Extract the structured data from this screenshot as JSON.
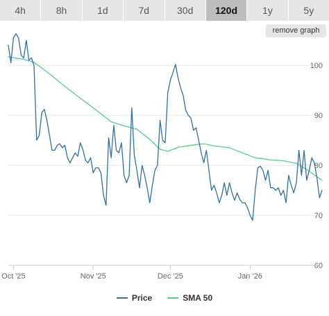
{
  "range_tabs": [
    {
      "label": "4h",
      "active": false
    },
    {
      "label": "8h",
      "active": false
    },
    {
      "label": "1d",
      "active": false
    },
    {
      "label": "7d",
      "active": false
    },
    {
      "label": "30d",
      "active": false
    },
    {
      "label": "120d",
      "active": true
    },
    {
      "label": "1y",
      "active": false
    },
    {
      "label": "5y",
      "active": false
    }
  ],
  "remove_graph_label": "remove graph",
  "colors": {
    "price": "#2a6fa8",
    "sma": "#4cd285"
  },
  "chart_data": {
    "type": "line",
    "x_type": "date",
    "xlim": [
      "2025-09-29",
      "2026-01-29"
    ],
    "ylim": [
      60,
      105
    ],
    "y_ticks": [
      60,
      70,
      80,
      90,
      100
    ],
    "y_axis_side": "right",
    "grid": "horizontal",
    "x_ticks": [
      {
        "date": "2025-10-01",
        "label": "Oct '25"
      },
      {
        "date": "2025-11-01",
        "label": "Nov '25"
      },
      {
        "date": "2025-12-01",
        "label": "Dec '25"
      },
      {
        "date": "2026-01-01",
        "label": "Jan '26"
      }
    ],
    "legend_position": "bottom",
    "series": [
      {
        "name": "Price",
        "color": "#2a6fa8",
        "points": [
          [
            "2025-09-29",
            104.0
          ],
          [
            "2025-09-30",
            100.5
          ],
          [
            "2025-10-01",
            105.5
          ],
          [
            "2025-10-02",
            106.3
          ],
          [
            "2025-10-03",
            105.4
          ],
          [
            "2025-10-04",
            102.0
          ],
          [
            "2025-10-05",
            101.5
          ],
          [
            "2025-10-06",
            105.0
          ],
          [
            "2025-10-07",
            101.0
          ],
          [
            "2025-10-08",
            101.5
          ],
          [
            "2025-10-09",
            100.0
          ],
          [
            "2025-10-10",
            85.0
          ],
          [
            "2025-10-11",
            86.0
          ],
          [
            "2025-10-12",
            90.5
          ],
          [
            "2025-10-13",
            91.2
          ],
          [
            "2025-10-14",
            89.0
          ],
          [
            "2025-10-15",
            86.0
          ],
          [
            "2025-10-16",
            83.0
          ],
          [
            "2025-10-17",
            83.0
          ],
          [
            "2025-10-18",
            84.0
          ],
          [
            "2025-10-19",
            84.3
          ],
          [
            "2025-10-20",
            83.5
          ],
          [
            "2025-10-21",
            84.0
          ],
          [
            "2025-10-22",
            81.5
          ],
          [
            "2025-10-23",
            80.5
          ],
          [
            "2025-10-24",
            81.5
          ],
          [
            "2025-10-25",
            82.5
          ],
          [
            "2025-10-26",
            81.8
          ],
          [
            "2025-10-27",
            84.5
          ],
          [
            "2025-10-28",
            83.2
          ],
          [
            "2025-10-29",
            81.0
          ],
          [
            "2025-10-30",
            80.5
          ],
          [
            "2025-10-31",
            81.5
          ],
          [
            "2025-11-01",
            78.5
          ],
          [
            "2025-11-02",
            79.5
          ],
          [
            "2025-11-03",
            79.5
          ],
          [
            "2025-11-04",
            78.5
          ],
          [
            "2025-11-05",
            74.0
          ],
          [
            "2025-11-06",
            72.0
          ],
          [
            "2025-11-07",
            85.5
          ],
          [
            "2025-11-08",
            81.5
          ],
          [
            "2025-11-09",
            88.0
          ],
          [
            "2025-11-10",
            83.0
          ],
          [
            "2025-11-11",
            82.5
          ],
          [
            "2025-11-12",
            84.5
          ],
          [
            "2025-11-13",
            78.0
          ],
          [
            "2025-11-14",
            76.5
          ],
          [
            "2025-11-15",
            78.0
          ],
          [
            "2025-11-16",
            91.5
          ],
          [
            "2025-11-17",
            82.0
          ],
          [
            "2025-11-18",
            79.0
          ],
          [
            "2025-11-19",
            75.5
          ],
          [
            "2025-11-20",
            80.0
          ],
          [
            "2025-11-21",
            78.0
          ],
          [
            "2025-11-22",
            75.5
          ],
          [
            "2025-11-23",
            72.5
          ],
          [
            "2025-11-24",
            76.0
          ],
          [
            "2025-11-25",
            79.0
          ],
          [
            "2025-11-26",
            80.0
          ],
          [
            "2025-11-27",
            89.0
          ],
          [
            "2025-11-28",
            85.0
          ],
          [
            "2025-11-29",
            84.5
          ],
          [
            "2025-11-30",
            94.5
          ],
          [
            "2025-12-01",
            97.0
          ],
          [
            "2025-12-02",
            98.5
          ],
          [
            "2025-12-03",
            100.2
          ],
          [
            "2025-12-04",
            97.5
          ],
          [
            "2025-12-05",
            95.5
          ],
          [
            "2025-12-06",
            94.0
          ],
          [
            "2025-12-07",
            91.0
          ],
          [
            "2025-12-08",
            90.0
          ],
          [
            "2025-12-09",
            89.5
          ],
          [
            "2025-12-10",
            87.0
          ],
          [
            "2025-12-11",
            87.5
          ],
          [
            "2025-12-12",
            85.0
          ],
          [
            "2025-12-13",
            82.5
          ],
          [
            "2025-12-14",
            80.5
          ],
          [
            "2025-12-15",
            83.0
          ],
          [
            "2025-12-16",
            79.0
          ],
          [
            "2025-12-17",
            75.0
          ],
          [
            "2025-12-18",
            76.0
          ],
          [
            "2025-12-19",
            74.5
          ],
          [
            "2025-12-20",
            72.5
          ],
          [
            "2025-12-21",
            74.0
          ],
          [
            "2025-12-22",
            76.5
          ],
          [
            "2025-12-23",
            74.0
          ],
          [
            "2025-12-24",
            76.5
          ],
          [
            "2025-12-25",
            74.5
          ],
          [
            "2025-12-26",
            73.0
          ],
          [
            "2025-12-27",
            74.5
          ],
          [
            "2025-12-28",
            73.2
          ],
          [
            "2025-12-29",
            72.5
          ],
          [
            "2025-12-30",
            72.5
          ],
          [
            "2025-12-31",
            71.5
          ],
          [
            "2026-01-01",
            70.0
          ],
          [
            "2026-01-02",
            69.0
          ],
          [
            "2026-01-03",
            75.0
          ],
          [
            "2026-01-04",
            79.5
          ],
          [
            "2026-01-05",
            79.8
          ],
          [
            "2026-01-06",
            79.0
          ],
          [
            "2026-01-07",
            77.0
          ],
          [
            "2026-01-08",
            79.0
          ],
          [
            "2026-01-09",
            75.5
          ],
          [
            "2026-01-10",
            75.5
          ],
          [
            "2026-01-11",
            75.0
          ],
          [
            "2026-01-12",
            75.5
          ],
          [
            "2026-01-13",
            74.0
          ],
          [
            "2026-01-14",
            75.0
          ],
          [
            "2026-01-15",
            72.5
          ],
          [
            "2026-01-16",
            78.0
          ],
          [
            "2026-01-17",
            76.0
          ],
          [
            "2026-01-18",
            74.5
          ],
          [
            "2026-01-19",
            76.5
          ],
          [
            "2026-01-20",
            83.0
          ],
          [
            "2026-01-21",
            78.0
          ],
          [
            "2026-01-22",
            83.0
          ],
          [
            "2026-01-23",
            77.0
          ],
          [
            "2026-01-24",
            79.0
          ],
          [
            "2026-01-25",
            81.5
          ],
          [
            "2026-01-26",
            80.5
          ],
          [
            "2026-01-27",
            77.5
          ],
          [
            "2026-01-28",
            73.5
          ],
          [
            "2026-01-29",
            75.0
          ]
        ]
      },
      {
        "name": "SMA 50",
        "color": "#4cd285",
        "points": [
          [
            "2025-09-29",
            101.7
          ],
          [
            "2025-10-05",
            101.2
          ],
          [
            "2025-10-09",
            100.6
          ],
          [
            "2025-10-14",
            98.7
          ],
          [
            "2025-10-20",
            96.2
          ],
          [
            "2025-10-26",
            93.8
          ],
          [
            "2025-11-01",
            91.5
          ],
          [
            "2025-11-06",
            89.5
          ],
          [
            "2025-11-08",
            88.7
          ],
          [
            "2025-11-13",
            87.9
          ],
          [
            "2025-11-18",
            87.2
          ],
          [
            "2025-11-23",
            85.2
          ],
          [
            "2025-11-27",
            83.2
          ],
          [
            "2025-11-30",
            82.8
          ],
          [
            "2025-12-04",
            83.6
          ],
          [
            "2025-12-09",
            84.0
          ],
          [
            "2025-12-14",
            84.3
          ],
          [
            "2025-12-19",
            83.8
          ],
          [
            "2025-12-24",
            83.5
          ],
          [
            "2025-12-29",
            82.5
          ],
          [
            "2026-01-03",
            81.5
          ],
          [
            "2026-01-09",
            81.1
          ],
          [
            "2026-01-14",
            80.9
          ],
          [
            "2026-01-19",
            80.4
          ],
          [
            "2026-01-24",
            78.8
          ],
          [
            "2026-01-29",
            77.0
          ]
        ]
      }
    ]
  }
}
